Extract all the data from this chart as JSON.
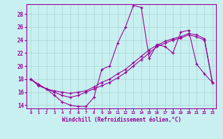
{
  "xlabel": "Windchill (Refroidissement éolien,°C)",
  "background_color": "#c8f0f0",
  "line_color": "#990099",
  "grid_color": "#b0d8d8",
  "ylim": [
    13.5,
    29.5
  ],
  "xlim": [
    -0.5,
    23.5
  ],
  "yticks": [
    14,
    16,
    18,
    20,
    22,
    24,
    26,
    28
  ],
  "xticks": [
    0,
    1,
    2,
    3,
    4,
    5,
    6,
    7,
    8,
    9,
    10,
    11,
    12,
    13,
    14,
    15,
    16,
    17,
    18,
    19,
    20,
    21,
    22,
    23
  ],
  "line1": [
    18.0,
    17.0,
    16.5,
    15.5,
    14.5,
    14.0,
    13.8,
    13.8,
    15.2,
    19.5,
    20.0,
    23.5,
    26.0,
    29.3,
    29.0,
    21.2,
    23.3,
    23.0,
    22.0,
    25.2,
    25.5,
    20.3,
    18.8,
    17.5
  ],
  "line2": [
    18.0,
    17.2,
    16.5,
    16.2,
    16.0,
    15.8,
    16.0,
    16.2,
    16.8,
    17.5,
    18.0,
    18.8,
    19.5,
    20.5,
    21.5,
    22.5,
    23.2,
    23.8,
    24.2,
    24.5,
    25.0,
    24.8,
    24.2,
    17.5
  ],
  "line3": [
    18.0,
    17.0,
    16.5,
    16.0,
    15.5,
    15.2,
    15.5,
    16.0,
    16.5,
    17.0,
    17.5,
    18.2,
    19.0,
    20.0,
    21.0,
    22.0,
    23.0,
    23.5,
    24.0,
    24.3,
    24.8,
    24.5,
    24.0,
    17.5
  ]
}
